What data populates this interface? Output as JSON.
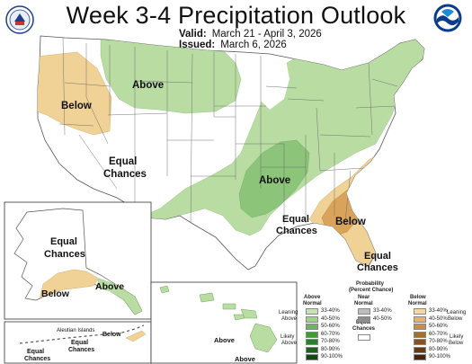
{
  "header": {
    "title": "Week 3-4 Precipitation Outlook",
    "valid_label": "Valid:",
    "valid_value": "March 21 - April 3, 2026",
    "issued_label": "Issued:",
    "issued_value": "March 6, 2026"
  },
  "logos": {
    "left": "department-of-commerce-seal",
    "right": "noaa-logo"
  },
  "colors": {
    "above_light": "#b9dca3",
    "above_mid": "#8cc47a",
    "below_light": "#f0d196",
    "below_mid": "#d9a45a",
    "state_line": "#666666",
    "land": "#ffffff"
  },
  "map": {
    "labels": {
      "west_below": "Below",
      "northern_rockies_above": "Above",
      "west_equal_1": "Equal",
      "west_equal_2": "Chances",
      "central_above": "Above",
      "gulf_equal_1": "Equal",
      "gulf_equal_2": "Chances",
      "southeast_below": "Below",
      "florida_equal_1": "Equal",
      "florida_equal_2": "Chances"
    },
    "regions": [
      {
        "name": "Pacific Northwest to Great Basin",
        "category": "Below",
        "probability": "33-40%"
      },
      {
        "name": "Northern Rockies and Northern Plains",
        "category": "Above",
        "probability": "33-40%"
      },
      {
        "name": "Southern Plains to Great Lakes and Northeast",
        "category": "Above",
        "probability": "33-40%"
      },
      {
        "name": "Lower Mississippi Valley / Ozarks",
        "category": "Above",
        "probability": "40-50%"
      },
      {
        "name": "Southeast Atlantic coast",
        "category": "Below",
        "probability": "33-40%"
      },
      {
        "name": "Georgia and South Carolina",
        "category": "Below",
        "probability": "40-50%"
      }
    ]
  },
  "alaska": {
    "equal_1": "Equal",
    "equal_2": "Chances",
    "below": "Below",
    "above": "Above",
    "aleutian_label": "Aleutian Islands",
    "aleutian_equal_1": "Equal",
    "aleutian_equal_2": "Chances",
    "aleutian_equal_left_1": "Equal",
    "aleutian_equal_left_2": "Chances",
    "aleutian_below": "Below"
  },
  "hawaii": {
    "above_1": "Above",
    "above_2": "Above"
  },
  "legend": {
    "title_1": "Probability",
    "title_2": "(Percent Chance)",
    "above_header_1": "Above",
    "above_header_2": "Normal",
    "near_header_1": "Near",
    "near_header_2": "Normal",
    "below_header_1": "Below",
    "below_header_2": "Normal",
    "leaning_above_1": "Leaning",
    "leaning_above_2": "Above",
    "likely_above_1": "Likely",
    "likely_above_2": "Above",
    "leaning_below_1": "Leaning",
    "leaning_below_2": "Below",
    "likely_below_1": "Likely",
    "likely_below_2": "Below",
    "equal_1": "Equal",
    "equal_2": "Chances",
    "ranges": [
      "33-40%",
      "40-50%",
      "50-60%",
      "60-70%",
      "70-80%",
      "80-90%",
      "90-100%"
    ],
    "near_ranges": [
      "33-40%",
      "40-50%"
    ],
    "above_colors": [
      "#c5e3b4",
      "#9fd08c",
      "#6cb55b",
      "#3f9a35",
      "#2b7f28",
      "#1a6419",
      "#0d4a0e"
    ],
    "near_colors": [
      "#bdbdbd",
      "#8e8e8e"
    ],
    "below_colors": [
      "#f4d9a4",
      "#e3b36c",
      "#c98d44",
      "#a86a2d",
      "#8a4f1f",
      "#6c3812",
      "#4a2408"
    ]
  }
}
